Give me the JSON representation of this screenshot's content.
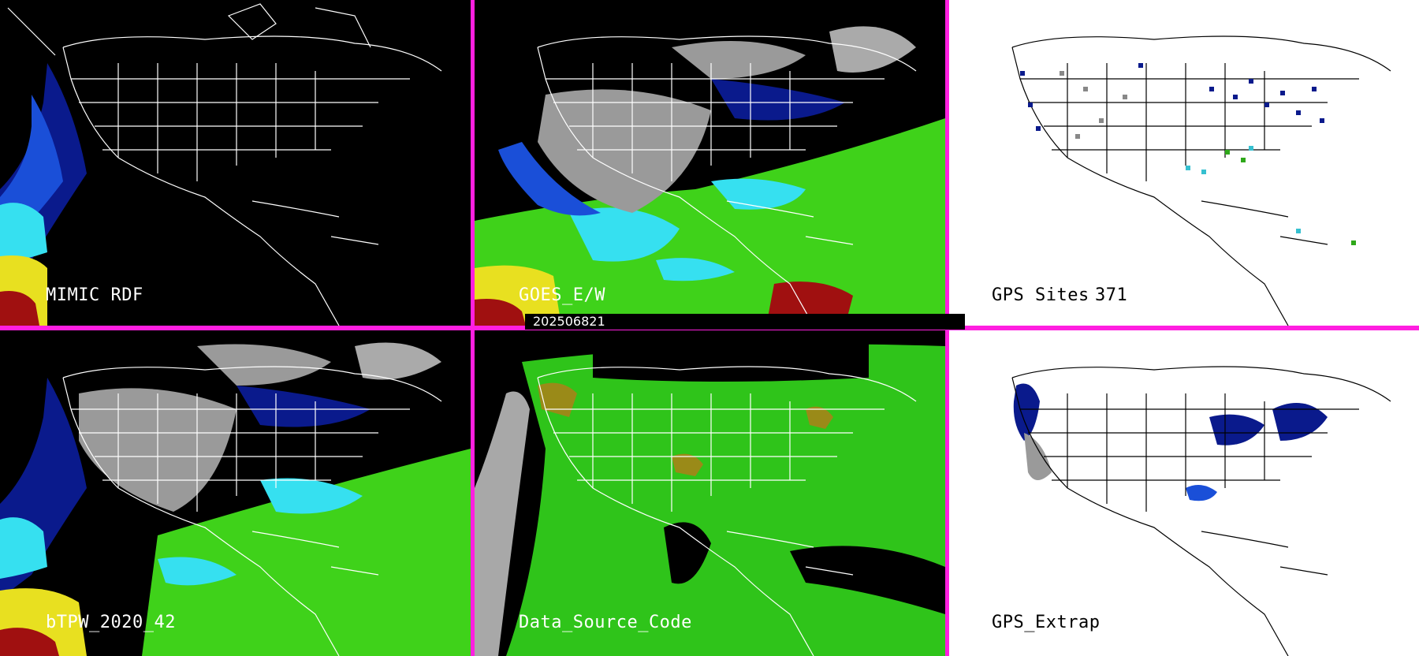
{
  "panels": [
    {
      "id": "mimic",
      "label": "MIMIC RDF",
      "background": "#000000"
    },
    {
      "id": "goes",
      "label": "GOES_E/W",
      "background": "#000000"
    },
    {
      "id": "gps-sites",
      "label": "GPS Sites",
      "count": "371",
      "background": "#ffffff"
    },
    {
      "id": "btpw",
      "label": "bTPW_2020_42",
      "background": "#000000"
    },
    {
      "id": "data-source",
      "label": "Data_Source_Code",
      "background": "#000000"
    },
    {
      "id": "gps-extrap",
      "label": "GPS_Extrap",
      "background": "#ffffff"
    }
  ],
  "timestamp": "202506821",
  "colors": {
    "divider": "#ff1fe0",
    "pw_dark_blue": "#0a1a8c",
    "pw_blue": "#1a4fd8",
    "pw_cyan": "#36e0f0",
    "pw_green": "#3fd21a",
    "pw_yellow": "#e8e020",
    "pw_red": "#a01010",
    "cloud_gray": "#9a9a9a",
    "data_green": "#2fc41a",
    "data_gray": "#a8a8a8",
    "data_olive": "#9a8a18"
  }
}
